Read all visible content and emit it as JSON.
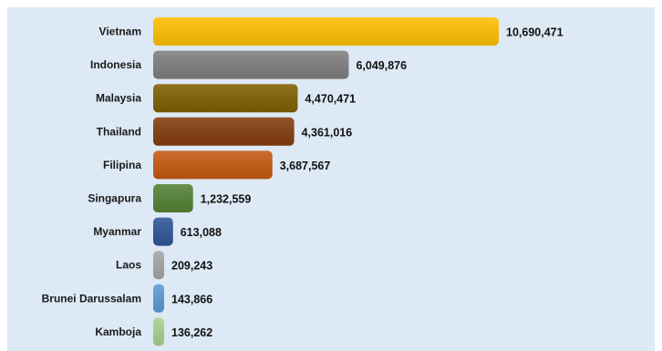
{
  "chart_data": {
    "type": "bar",
    "orientation": "horizontal",
    "title": "",
    "xlabel": "",
    "ylabel": "",
    "categories": [
      "Vietnam",
      "Indonesia",
      "Malaysia",
      "Thailand",
      "Filipina",
      "Singapura",
      "Myanmar",
      "Laos",
      "Brunei Darussalam",
      "Kamboja"
    ],
    "values": [
      10690471,
      6049876,
      4470471,
      4361016,
      3687567,
      1232559,
      613088,
      209243,
      143866,
      136262
    ],
    "value_labels": [
      "10,690,471",
      "6,049,876",
      "4,470,471",
      "4,361,016",
      "3,687,567",
      "1,232,559",
      "613,088",
      "209,243",
      "143,866",
      "136,262"
    ],
    "colors": [
      "#ffc000",
      "#7f7f7f",
      "#7f6000",
      "#843c0c",
      "#c55a11",
      "#548235",
      "#2f5597",
      "#a6a6a6",
      "#5b9bd5",
      "#a9d18e"
    ],
    "xlim": [
      0,
      10690471
    ],
    "grid": false,
    "legend": "none"
  }
}
